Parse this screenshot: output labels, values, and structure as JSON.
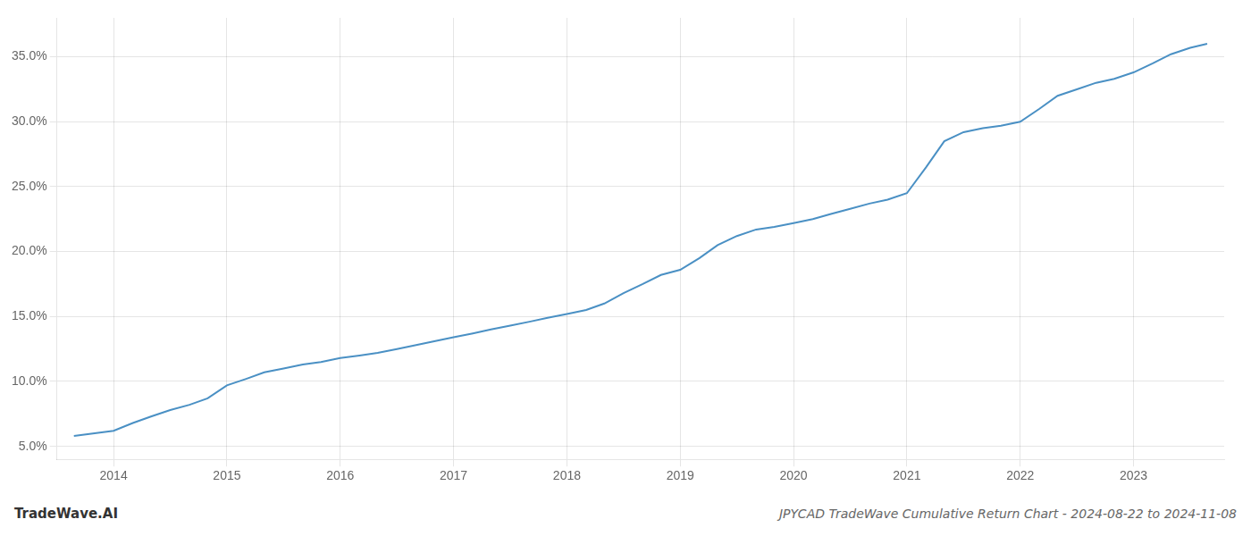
{
  "chart_data": {
    "type": "line",
    "title": "JPYCAD TradeWave Cumulative Return Chart - 2024-08-22 to 2024-11-08",
    "annotations": [
      "TradeWave.AI"
    ],
    "x": [
      2013.65,
      2014.0,
      2014.17,
      2014.33,
      2014.5,
      2014.67,
      2014.83,
      2015.0,
      2015.17,
      2015.33,
      2015.5,
      2015.67,
      2015.83,
      2016.0,
      2016.17,
      2016.33,
      2016.5,
      2016.67,
      2016.83,
      2017.0,
      2017.17,
      2017.33,
      2017.5,
      2017.67,
      2017.83,
      2018.0,
      2018.17,
      2018.33,
      2018.5,
      2018.67,
      2018.83,
      2019.0,
      2019.17,
      2019.33,
      2019.5,
      2019.67,
      2019.83,
      2020.0,
      2020.17,
      2020.33,
      2020.5,
      2020.67,
      2020.83,
      2021.0,
      2021.17,
      2021.33,
      2021.5,
      2021.67,
      2021.83,
      2022.0,
      2022.17,
      2022.33,
      2022.5,
      2022.67,
      2022.83,
      2023.0,
      2023.17,
      2023.33,
      2023.5,
      2023.65
    ],
    "values": [
      5.8,
      6.2,
      6.8,
      7.3,
      7.8,
      8.2,
      8.7,
      9.7,
      10.2,
      10.7,
      11.0,
      11.3,
      11.5,
      11.8,
      12.0,
      12.2,
      12.5,
      12.8,
      13.1,
      13.4,
      13.7,
      14.0,
      14.3,
      14.6,
      14.9,
      15.2,
      15.5,
      16.0,
      16.8,
      17.5,
      18.2,
      18.6,
      19.5,
      20.5,
      21.2,
      21.7,
      21.9,
      22.2,
      22.5,
      22.9,
      23.3,
      23.7,
      24.0,
      24.5,
      26.5,
      28.5,
      29.2,
      29.5,
      29.7,
      30.0,
      31.0,
      32.0,
      32.5,
      33.0,
      33.3,
      33.8,
      34.5,
      35.2,
      35.7,
      36.0
    ],
    "color": "#4a90c4",
    "xlim": [
      2013.5,
      2023.8
    ],
    "ylim": [
      4.0,
      38.0
    ],
    "xticks": [
      2014,
      2015,
      2016,
      2017,
      2018,
      2019,
      2020,
      2021,
      2022,
      2023
    ],
    "yticks": [
      {
        "value": 5.0,
        "label": "5.0%"
      },
      {
        "value": 10.0,
        "label": "10.0%"
      },
      {
        "value": 15.0,
        "label": "15.0%"
      },
      {
        "value": 20.0,
        "label": "20.0%"
      },
      {
        "value": 25.0,
        "label": "25.0%"
      },
      {
        "value": 30.0,
        "label": "30.0%"
      },
      {
        "value": 35.0,
        "label": "35.0%"
      }
    ],
    "grid": true
  }
}
